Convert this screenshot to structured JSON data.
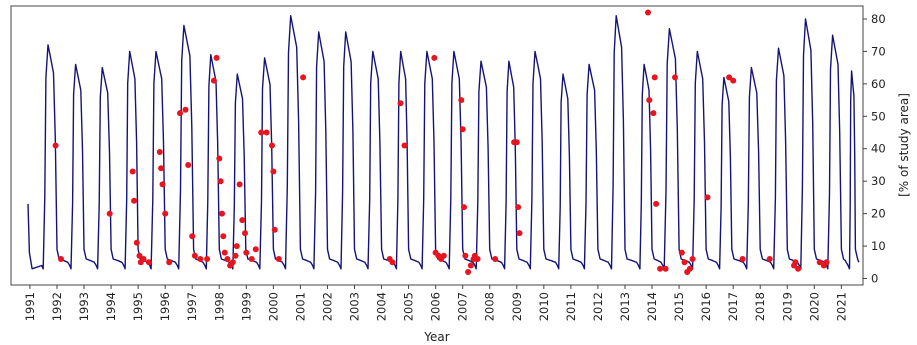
{
  "chart_data": {
    "type": "line",
    "title": "",
    "xlabel": "Year",
    "ylabel": "[% of study area]",
    "x_range": [
      1990.3,
      2021.8
    ],
    "ylim": [
      -2,
      84
    ],
    "x_ticks": [
      1991,
      1992,
      1993,
      1994,
      1995,
      1996,
      1997,
      1998,
      1999,
      2000,
      2001,
      2002,
      2003,
      2004,
      2005,
      2006,
      2007,
      2008,
      2009,
      2010,
      2011,
      2012,
      2013,
      2014,
      2015,
      2016,
      2017,
      2018,
      2019,
      2020,
      2021
    ],
    "x_tick_labels": [
      "1991",
      "1992",
      "1993",
      "1994",
      "1995",
      "1996",
      "1997",
      "1998",
      "1999",
      "2000",
      "2001",
      "2002",
      "2003",
      "2004",
      "2005",
      "2006",
      "2007",
      "2008",
      "2009",
      "2010",
      "2011",
      "2012",
      "2013",
      "2014",
      "2015",
      "2016",
      "2017",
      "2018",
      "2019",
      "2020",
      "2021"
    ],
    "y_ticks": [
      0,
      10,
      20,
      30,
      40,
      50,
      60,
      70,
      80
    ],
    "y_tick_labels": [
      "0",
      "10",
      "20",
      "30",
      "40",
      "50",
      "60",
      "70",
      "80"
    ],
    "y_axis_side": "right",
    "grid": false,
    "legend": "none",
    "series": [
      {
        "type": "line",
        "color": "#141478",
        "start_value": 23,
        "x_start": 1990.93,
        "x_end": 2021.65,
        "seasons": [
          {
            "start": 1991.49,
            "end": 1992.0,
            "peak": 72
          },
          {
            "start": 1992.52,
            "end": 1993.0,
            "peak": 66
          },
          {
            "start": 1993.5,
            "end": 1994.0,
            "peak": 65
          },
          {
            "start": 1994.52,
            "end": 1995.0,
            "peak": 70
          },
          {
            "start": 1995.48,
            "end": 1996.0,
            "peak": 70
          },
          {
            "start": 1996.5,
            "end": 1997.05,
            "peak": 78
          },
          {
            "start": 1997.52,
            "end": 1998.0,
            "peak": 69
          },
          {
            "start": 1998.5,
            "end": 1998.98,
            "peak": 63
          },
          {
            "start": 1999.5,
            "end": 2000.0,
            "peak": 68
          },
          {
            "start": 2000.45,
            "end": 2001.0,
            "peak": 81
          },
          {
            "start": 2001.5,
            "end": 2002.0,
            "peak": 76
          },
          {
            "start": 2002.5,
            "end": 2003.0,
            "peak": 76
          },
          {
            "start": 2003.5,
            "end": 2004.0,
            "peak": 70
          },
          {
            "start": 2004.55,
            "end": 2005.0,
            "peak": 70
          },
          {
            "start": 2005.5,
            "end": 2006.0,
            "peak": 70
          },
          {
            "start": 2006.5,
            "end": 2007.0,
            "peak": 70
          },
          {
            "start": 2007.5,
            "end": 2008.0,
            "peak": 67
          },
          {
            "start": 2008.55,
            "end": 2009.0,
            "peak": 67
          },
          {
            "start": 2009.5,
            "end": 2010.0,
            "peak": 70
          },
          {
            "start": 2010.55,
            "end": 2011.0,
            "peak": 63
          },
          {
            "start": 2011.5,
            "end": 2012.0,
            "peak": 66
          },
          {
            "start": 2012.5,
            "end": 2013.0,
            "peak": 81
          },
          {
            "start": 2013.55,
            "end": 2014.0,
            "peak": 66
          },
          {
            "start": 2014.45,
            "end": 2015.0,
            "peak": 77
          },
          {
            "start": 2015.5,
            "end": 2016.0,
            "peak": 70
          },
          {
            "start": 2016.5,
            "end": 2016.95,
            "peak": 62
          },
          {
            "start": 2017.5,
            "end": 2018.0,
            "peak": 65
          },
          {
            "start": 2018.5,
            "end": 2019.0,
            "peak": 71
          },
          {
            "start": 2019.5,
            "end": 2020.0,
            "peak": 80
          },
          {
            "start": 2020.5,
            "end": 2021.0,
            "peak": 75
          },
          {
            "start": 2021.3,
            "end": 2021.52,
            "peak": 64
          }
        ],
        "winter_min": 3,
        "summer_plateau": 6
      }
    ],
    "points": [
      {
        "x": 1991.95,
        "y": 41
      },
      {
        "x": 1992.15,
        "y": 6
      },
      {
        "x": 1993.95,
        "y": 20
      },
      {
        "x": 1994.8,
        "y": 33
      },
      {
        "x": 1994.85,
        "y": 24
      },
      {
        "x": 1994.95,
        "y": 11
      },
      {
        "x": 1995.05,
        "y": 7
      },
      {
        "x": 1995.1,
        "y": 5
      },
      {
        "x": 1995.2,
        "y": 6
      },
      {
        "x": 1995.4,
        "y": 5
      },
      {
        "x": 1995.8,
        "y": 39
      },
      {
        "x": 1995.85,
        "y": 34
      },
      {
        "x": 1995.9,
        "y": 29
      },
      {
        "x": 1996.0,
        "y": 20
      },
      {
        "x": 1996.15,
        "y": 5
      },
      {
        "x": 1996.55,
        "y": 51
      },
      {
        "x": 1996.75,
        "y": 52
      },
      {
        "x": 1996.85,
        "y": 35
      },
      {
        "x": 1997.0,
        "y": 13
      },
      {
        "x": 1997.1,
        "y": 7
      },
      {
        "x": 1997.3,
        "y": 6
      },
      {
        "x": 1997.55,
        "y": 6
      },
      {
        "x": 1997.8,
        "y": 61
      },
      {
        "x": 1997.9,
        "y": 68
      },
      {
        "x": 1998.0,
        "y": 37
      },
      {
        "x": 1998.05,
        "y": 30
      },
      {
        "x": 1998.1,
        "y": 20
      },
      {
        "x": 1998.15,
        "y": 13
      },
      {
        "x": 1998.2,
        "y": 8
      },
      {
        "x": 1998.3,
        "y": 6
      },
      {
        "x": 1998.4,
        "y": 4
      },
      {
        "x": 1998.5,
        "y": 5
      },
      {
        "x": 1998.6,
        "y": 7
      },
      {
        "x": 1998.65,
        "y": 10
      },
      {
        "x": 1998.75,
        "y": 29
      },
      {
        "x": 1998.85,
        "y": 18
      },
      {
        "x": 1998.95,
        "y": 14
      },
      {
        "x": 1999.0,
        "y": 8
      },
      {
        "x": 1999.2,
        "y": 6
      },
      {
        "x": 1999.35,
        "y": 9
      },
      {
        "x": 1999.55,
        "y": 45
      },
      {
        "x": 1999.75,
        "y": 45
      },
      {
        "x": 1999.95,
        "y": 41
      },
      {
        "x": 2000.0,
        "y": 33
      },
      {
        "x": 2000.05,
        "y": 15
      },
      {
        "x": 2000.2,
        "y": 6
      },
      {
        "x": 2001.1,
        "y": 62
      },
      {
        "x": 2004.3,
        "y": 6
      },
      {
        "x": 2004.4,
        "y": 5
      },
      {
        "x": 2004.7,
        "y": 54
      },
      {
        "x": 2004.85,
        "y": 41
      },
      {
        "x": 2005.95,
        "y": 68
      },
      {
        "x": 2006.0,
        "y": 8
      },
      {
        "x": 2006.1,
        "y": 7
      },
      {
        "x": 2006.2,
        "y": 6
      },
      {
        "x": 2006.3,
        "y": 7
      },
      {
        "x": 2006.95,
        "y": 55
      },
      {
        "x": 2007.0,
        "y": 46
      },
      {
        "x": 2007.05,
        "y": 22
      },
      {
        "x": 2007.1,
        "y": 7
      },
      {
        "x": 2007.2,
        "y": 2
      },
      {
        "x": 2007.3,
        "y": 4
      },
      {
        "x": 2007.4,
        "y": 6
      },
      {
        "x": 2007.45,
        "y": 7
      },
      {
        "x": 2007.55,
        "y": 6
      },
      {
        "x": 2008.2,
        "y": 6
      },
      {
        "x": 2008.9,
        "y": 42
      },
      {
        "x": 2009.0,
        "y": 42
      },
      {
        "x": 2009.05,
        "y": 22
      },
      {
        "x": 2009.1,
        "y": 14
      },
      {
        "x": 2013.85,
        "y": 82
      },
      {
        "x": 2013.9,
        "y": 55
      },
      {
        "x": 2014.05,
        "y": 51
      },
      {
        "x": 2014.1,
        "y": 62
      },
      {
        "x": 2014.15,
        "y": 23
      },
      {
        "x": 2014.3,
        "y": 3
      },
      {
        "x": 2014.5,
        "y": 3
      },
      {
        "x": 2014.85,
        "y": 62
      },
      {
        "x": 2015.1,
        "y": 8
      },
      {
        "x": 2015.2,
        "y": 5
      },
      {
        "x": 2015.3,
        "y": 2
      },
      {
        "x": 2015.4,
        "y": 3
      },
      {
        "x": 2015.5,
        "y": 6
      },
      {
        "x": 2016.05,
        "y": 25
      },
      {
        "x": 2016.85,
        "y": 62
      },
      {
        "x": 2017.0,
        "y": 61
      },
      {
        "x": 2017.35,
        "y": 6
      },
      {
        "x": 2018.35,
        "y": 6
      },
      {
        "x": 2019.25,
        "y": 4
      },
      {
        "x": 2019.3,
        "y": 5
      },
      {
        "x": 2019.4,
        "y": 3
      },
      {
        "x": 2020.2,
        "y": 5
      },
      {
        "x": 2020.35,
        "y": 4
      },
      {
        "x": 2020.45,
        "y": 5
      }
    ],
    "point_color": "#e8141e"
  }
}
